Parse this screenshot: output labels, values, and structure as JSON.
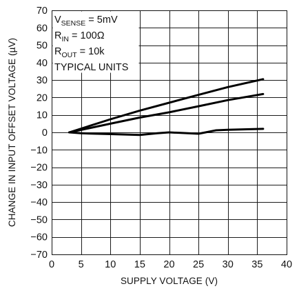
{
  "chart_data": {
    "type": "line",
    "xlabel": "SUPPLY VOLTAGE (V)",
    "ylabel": "CHANGE IN INPUT OFFSET VOLTAGE (µV)",
    "xlim": [
      0,
      40
    ],
    "ylim": [
      -70,
      70
    ],
    "xticks": [
      0,
      5,
      10,
      15,
      20,
      25,
      30,
      35,
      40
    ],
    "yticks": [
      70,
      60,
      50,
      40,
      30,
      20,
      10,
      0,
      -10,
      -20,
      -30,
      -40,
      -50,
      -60,
      -70
    ],
    "xtick_labels": [
      "0",
      "5",
      "10",
      "15",
      "20",
      "25",
      "30",
      "35",
      "40"
    ],
    "ytick_labels": [
      "70",
      "60",
      "50",
      "40",
      "30",
      "20",
      "10",
      "0",
      "−10",
      "−20",
      "−30",
      "−40",
      "−50",
      "−60",
      "−70"
    ],
    "grid": true,
    "annotations": [
      {
        "main": "V",
        "sub": "SENSE",
        "rest": " = 5mV"
      },
      {
        "main": "R",
        "sub": "IN",
        "rest": " = 100Ω"
      },
      {
        "main": "R",
        "sub": "OUT",
        "rest": " = 10k"
      },
      {
        "main": "TYPICAL UNITS",
        "sub": "",
        "rest": ""
      }
    ],
    "series": [
      {
        "x": [
          3,
          10,
          15,
          20,
          25,
          30,
          36
        ],
        "y": [
          0,
          7.5,
          12.5,
          17,
          21.5,
          26,
          30.5
        ]
      },
      {
        "x": [
          3,
          10,
          15,
          20,
          25,
          30,
          36
        ],
        "y": [
          0,
          5,
          8.5,
          11.5,
          15,
          18.5,
          22
        ]
      },
      {
        "x": [
          3,
          5,
          10,
          15,
          18,
          20,
          22,
          25,
          28,
          30,
          36
        ],
        "y": [
          0,
          -0.5,
          -1,
          -1.5,
          -0.5,
          0,
          -0.3,
          -0.8,
          1.2,
          1.5,
          2
        ]
      }
    ]
  }
}
